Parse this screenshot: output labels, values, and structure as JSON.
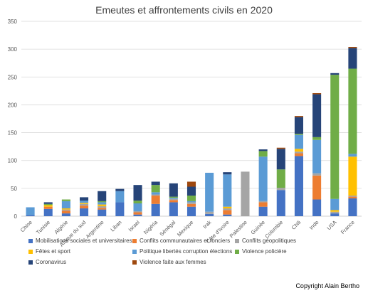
{
  "chart_data": {
    "type": "bar",
    "stacked": true,
    "title": "Emeutes et affrontements civils en 2020",
    "ylim": [
      0,
      350
    ],
    "yticks": [
      0,
      50,
      100,
      150,
      200,
      250,
      300,
      350
    ],
    "grid": true,
    "legend_position": "bottom",
    "categories": [
      "Chine",
      "Tunisie",
      "Algérie",
      "Afrique du sud",
      "Argentine",
      "Liban",
      "Israel",
      "Nigéria",
      "Sénégal",
      "Mexique",
      "Irak",
      "Côte d'Ivoire",
      "Palestine",
      "Guinée",
      "Colombie",
      "Chili",
      "Inde",
      "USA",
      "France"
    ],
    "series": [
      {
        "name": "Mobilisations sociales et universitaires",
        "color": "#4472C4",
        "values": [
          2,
          13,
          5,
          14,
          12,
          25,
          3,
          22,
          25,
          17,
          4,
          3,
          0,
          17,
          47,
          108,
          30,
          5,
          32
        ]
      },
      {
        "name": "Conflits communautaires et fonciers",
        "color": "#ED7D31",
        "values": [
          0,
          4,
          5,
          5,
          3,
          0,
          4,
          15,
          4,
          5,
          0,
          8,
          0,
          8,
          0,
          5,
          43,
          0,
          3
        ]
      },
      {
        "name": "Conflits géopolitiques",
        "color": "#A5A5A5",
        "values": [
          0,
          0,
          2,
          3,
          3,
          0,
          2,
          2,
          2,
          3,
          4,
          3,
          80,
          2,
          4,
          3,
          4,
          3,
          2
        ]
      },
      {
        "name": "Fêtes et sport",
        "color": "#FFC000",
        "values": [
          0,
          3,
          2,
          2,
          3,
          0,
          0,
          0,
          0,
          0,
          0,
          3,
          0,
          0,
          0,
          5,
          0,
          3,
          70
        ]
      },
      {
        "name": "Politique libertés corruption élections",
        "color": "#5B9BD5",
        "values": [
          14,
          0,
          13,
          4,
          4,
          20,
          14,
          4,
          2,
          2,
          70,
          58,
          0,
          80,
          0,
          25,
          60,
          20,
          5
        ]
      },
      {
        "name": "Violence policière",
        "color": "#70AD47",
        "values": [
          0,
          2,
          3,
          0,
          2,
          0,
          5,
          13,
          2,
          10,
          0,
          0,
          0,
          10,
          33,
          2,
          5,
          223,
          153
        ]
      },
      {
        "name": "Coronavirus",
        "color": "#264478",
        "values": [
          0,
          3,
          0,
          6,
          18,
          4,
          28,
          6,
          24,
          16,
          0,
          4,
          0,
          3,
          37,
          30,
          77,
          3,
          37
        ]
      },
      {
        "name": "Violence faite aux femmes",
        "color": "#9E480E",
        "values": [
          0,
          0,
          0,
          0,
          0,
          0,
          0,
          0,
          0,
          9,
          0,
          0,
          0,
          0,
          2,
          2,
          2,
          0,
          2
        ]
      }
    ]
  },
  "copyright": "Copyright Alain Bertho"
}
